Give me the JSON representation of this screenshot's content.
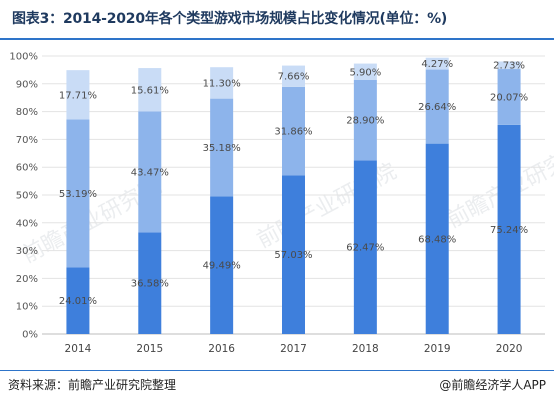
{
  "title": "图表3：2014-2020年各个类型游戏市场规模占比变化情况(单位：%)",
  "source": "资料来源：前瞻产业研究院整理",
  "brand": "@前瞻经济学人APP",
  "watermark": "前瞻产业研究院",
  "chart_data": {
    "type": "bar",
    "stacked": true,
    "categories": [
      "2014",
      "2015",
      "2016",
      "2017",
      "2018",
      "2019",
      "2020"
    ],
    "series": [
      {
        "values": [
          24.01,
          36.58,
          49.49,
          57.03,
          62.47,
          68.48,
          75.24
        ],
        "labels": [
          "24.01%",
          "36.58%",
          "49.49%",
          "57.03%",
          "62.47%",
          "68.48%",
          "75.24%"
        ],
        "color": "#3e7fdc"
      },
      {
        "values": [
          53.19,
          43.47,
          35.18,
          31.86,
          28.9,
          26.64,
          20.07
        ],
        "labels": [
          "53.19%",
          "43.47%",
          "35.18%",
          "31.86%",
          "28.90%",
          "26.64%",
          "20.07%"
        ],
        "color": "#8db4eb"
      },
      {
        "values": [
          17.71,
          15.61,
          11.3,
          7.66,
          5.9,
          4.27,
          2.73
        ],
        "labels": [
          "17.71%",
          "15.61%",
          "11.30%",
          "7.66%",
          "5.90%",
          "4.27%",
          "2.73%"
        ],
        "color": "#c9dcf6"
      }
    ],
    "yticks": [
      "0%",
      "10%",
      "20%",
      "30%",
      "40%",
      "50%",
      "60%",
      "70%",
      "80%",
      "90%",
      "100%"
    ],
    "ylim": [
      0,
      100
    ],
    "grid": true,
    "xlabel": "",
    "ylabel": ""
  }
}
